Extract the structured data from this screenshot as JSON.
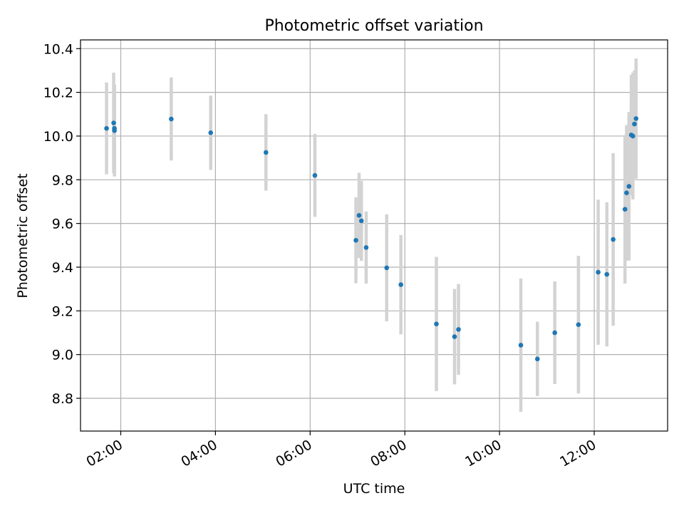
{
  "chart_data": {
    "type": "scatter",
    "title": "Photometric offset variation",
    "xlabel": "UTC time",
    "ylabel": "Photometric offset",
    "x_ticks": [
      {
        "time": "02:00",
        "label": "02:00"
      },
      {
        "time": "04:00",
        "label": "04:00"
      },
      {
        "time": "06:00",
        "label": "06:00"
      },
      {
        "time": "08:00",
        "label": "08:00"
      },
      {
        "time": "10:00",
        "label": "10:00"
      },
      {
        "time": "12:00",
        "label": "12:00"
      }
    ],
    "y_ticks": [
      "8.8",
      "9.0",
      "9.2",
      "9.4",
      "9.6",
      "9.8",
      "10.0",
      "10.2",
      "10.4"
    ],
    "xlim": [
      "01:09",
      "13:33"
    ],
    "ylim": [
      8.65,
      10.44
    ],
    "grid": true,
    "colors": {
      "point": "#1f77b4",
      "errorbar": "#d3d3d3",
      "grid": "#b0b0b0"
    },
    "points": [
      {
        "time": "01:42",
        "y": 10.035,
        "err": 0.21
      },
      {
        "time": "01:51",
        "y": 10.06,
        "err": 0.23
      },
      {
        "time": "01:52",
        "y": 10.035,
        "err": 0.2
      },
      {
        "time": "01:52",
        "y": 10.025,
        "err": 0.21
      },
      {
        "time": "03:04",
        "y": 10.078,
        "err": 0.19
      },
      {
        "time": "03:54",
        "y": 10.015,
        "err": 0.17
      },
      {
        "time": "05:04",
        "y": 9.925,
        "err": 0.175
      },
      {
        "time": "06:06",
        "y": 9.82,
        "err": 0.19
      },
      {
        "time": "06:58",
        "y": 9.523,
        "err": 0.197
      },
      {
        "time": "07:02",
        "y": 9.637,
        "err": 0.195
      },
      {
        "time": "07:05",
        "y": 9.612,
        "err": 0.183
      },
      {
        "time": "07:11",
        "y": 9.49,
        "err": 0.165
      },
      {
        "time": "07:37",
        "y": 9.397,
        "err": 0.245
      },
      {
        "time": "07:55",
        "y": 9.32,
        "err": 0.227
      },
      {
        "time": "08:40",
        "y": 9.14,
        "err": 0.307
      },
      {
        "time": "09:03",
        "y": 9.082,
        "err": 0.218
      },
      {
        "time": "09:08",
        "y": 9.115,
        "err": 0.208
      },
      {
        "time": "10:27",
        "y": 9.043,
        "err": 0.305
      },
      {
        "time": "10:48",
        "y": 8.98,
        "err": 0.17
      },
      {
        "time": "11:10",
        "y": 9.1,
        "err": 0.235
      },
      {
        "time": "11:40",
        "y": 9.137,
        "err": 0.315
      },
      {
        "time": "12:05",
        "y": 9.377,
        "err": 0.332
      },
      {
        "time": "12:16",
        "y": 9.367,
        "err": 0.33
      },
      {
        "time": "12:24",
        "y": 9.527,
        "err": 0.395
      },
      {
        "time": "12:39",
        "y": 9.665,
        "err": 0.34
      },
      {
        "time": "12:41",
        "y": 9.74,
        "err": 0.31
      },
      {
        "time": "12:44",
        "y": 9.77,
        "err": 0.34
      },
      {
        "time": "12:47",
        "y": 10.005,
        "err": 0.275
      },
      {
        "time": "12:49",
        "y": 10.0,
        "err": 0.29
      },
      {
        "time": "12:51",
        "y": 10.055,
        "err": 0.245
      },
      {
        "time": "12:53",
        "y": 10.08,
        "err": 0.275
      }
    ]
  }
}
